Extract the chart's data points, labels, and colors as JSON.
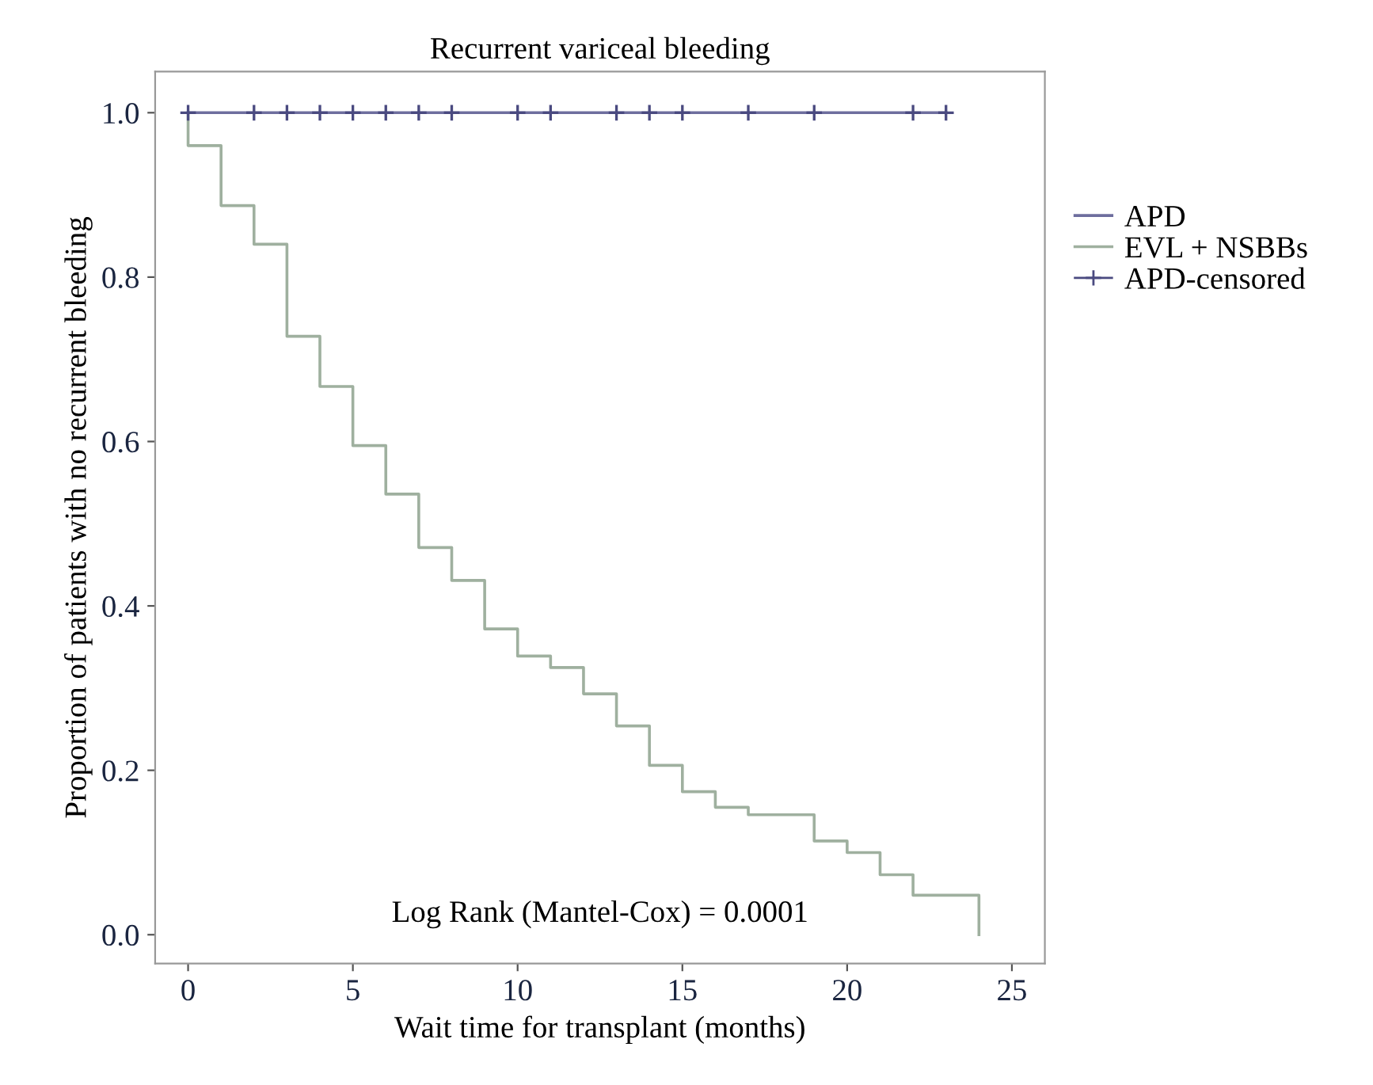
{
  "chart_data": {
    "type": "step",
    "title": "Recurrent variceal bleeding",
    "xlabel": "Wait time for transplant (months)",
    "ylabel": "Proportion of patients with no recurrent bleeding",
    "xlim": [
      -1,
      26
    ],
    "ylim": [
      -0.035,
      1.05
    ],
    "xticks": [
      0,
      5,
      10,
      15,
      20,
      25
    ],
    "yticks": [
      {
        "value": 0,
        "label": "0.0"
      },
      {
        "value": 0.2,
        "label": "0.2"
      },
      {
        "value": 0.4,
        "label": "0.4"
      },
      {
        "value": 0.6,
        "label": "0.6"
      },
      {
        "value": 0.8,
        "label": "0.8"
      },
      {
        "value": 1,
        "label": "1.0"
      }
    ],
    "grid": false,
    "legend": "right",
    "annotations": [
      "Log Rank (Mantel-Cox) = 0.0001"
    ],
    "series": [
      {
        "name": "APD",
        "color": "#6e6e9e",
        "x": [
          0,
          23
        ],
        "values": [
          1.0,
          1.0
        ]
      },
      {
        "name": "EVL + NSBBs",
        "color": "#9fb09f",
        "x": [
          0,
          0,
          1,
          2,
          3,
          4,
          5,
          6,
          7,
          8,
          9,
          10,
          11,
          12,
          13,
          14,
          15,
          16,
          17,
          19,
          20,
          21,
          22,
          24
        ],
        "values": [
          1.0,
          0.96,
          0.887,
          0.84,
          0.728,
          0.667,
          0.595,
          0.536,
          0.471,
          0.431,
          0.372,
          0.339,
          0.325,
          0.293,
          0.254,
          0.206,
          0.174,
          0.155,
          0.146,
          0.114,
          0.1,
          0.073,
          0.048,
          0.0
        ]
      },
      {
        "name": "APD-censored",
        "type": "scatter",
        "marker": "cross",
        "color": "#4a4a80",
        "x": [
          0,
          2,
          3,
          4,
          5,
          6,
          7,
          8,
          10,
          11,
          13,
          14,
          15,
          17,
          19,
          22,
          23
        ],
        "values": [
          1,
          1,
          1,
          1,
          1,
          1,
          1,
          1,
          1,
          1,
          1,
          1,
          1,
          1,
          1,
          1,
          1
        ]
      }
    ]
  }
}
